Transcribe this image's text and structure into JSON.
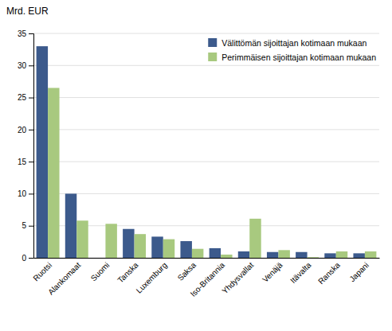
{
  "chart_data": {
    "type": "bar",
    "ylabel": "Mrd. EUR",
    "categories": [
      "Ruotsi",
      "Alankomaat",
      "Suomi",
      "Tanska",
      "Luxemburg",
      "Saksa",
      "Iso-Britannia",
      "Yhdysvallat",
      "Venäjä",
      "Itävalta",
      "Ranska",
      "Japani"
    ],
    "series": [
      {
        "name": "Välittömän sijoittajan kotimaan mukaan",
        "color": "#3c5a8c",
        "values": [
          33.0,
          10.0,
          0.0,
          4.5,
          3.3,
          2.6,
          1.5,
          1.0,
          0.9,
          0.9,
          0.7,
          0.7
        ]
      },
      {
        "name": "Perimmäisen sijoittajan kotimaan mukaan",
        "color": "#a8c97f",
        "values": [
          26.5,
          5.8,
          5.3,
          3.7,
          2.9,
          1.4,
          0.5,
          6.1,
          1.2,
          0.1,
          1.0,
          1.0
        ]
      }
    ],
    "ylim": [
      0,
      35
    ],
    "yticks": [
      0,
      5,
      10,
      15,
      20,
      25,
      30,
      35
    ],
    "grid": true,
    "legend": "upper right"
  }
}
